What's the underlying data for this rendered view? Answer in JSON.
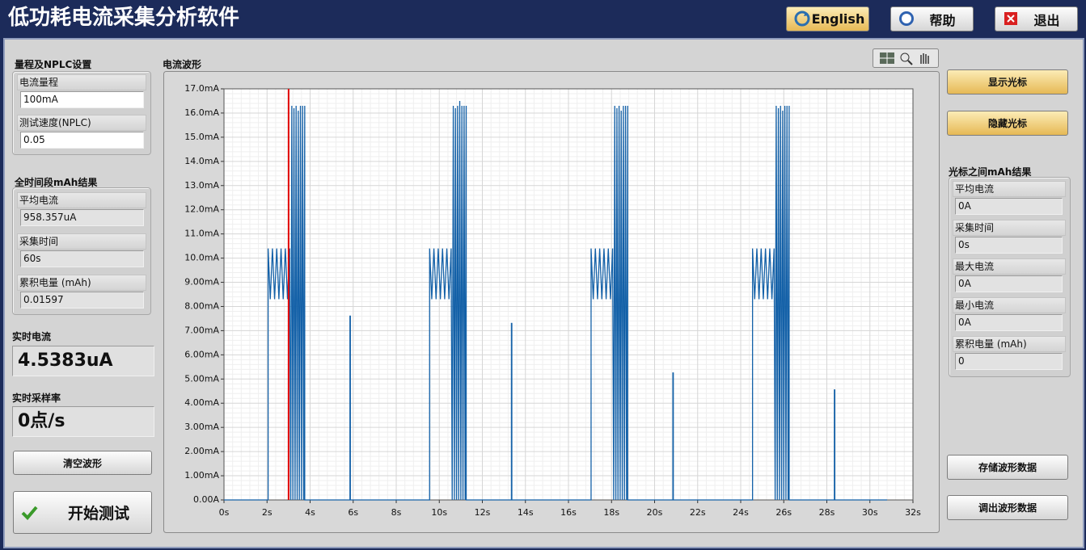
{
  "header": {
    "title": "低功耗电流采集分析软件",
    "buttons": [
      "English",
      "帮助",
      "退出"
    ]
  },
  "range_settings": {
    "title": "量程及NPLC设置",
    "fields": [
      {
        "label": "电流量程",
        "value": "100mA"
      },
      {
        "label": "测试速度(NPLC)",
        "value": "0.05"
      }
    ]
  },
  "total_results": {
    "title": "全时间段mAh结果",
    "fields": [
      {
        "label": "平均电流",
        "value": "958.357uA"
      },
      {
        "label": "采集时间",
        "value": "60s"
      },
      {
        "label": "累积电量 (mAh)",
        "value": "0.01597"
      }
    ]
  },
  "realtime_current": {
    "label": "实时电流",
    "value": "4.5383uA"
  },
  "realtime_rate": {
    "label": "实时采样率",
    "value": "0点/s"
  },
  "left_buttons": [
    "清空波形",
    "开始测试"
  ],
  "chart_data": {
    "type": "line",
    "title": "电流波形",
    "x": [
      0,
      2.05,
      2.05,
      2.15,
      2.25,
      2.35,
      2.45,
      2.55,
      2.65,
      2.75,
      2.85,
      2.95,
      3.05,
      3.1,
      3.15,
      3.2,
      3.25,
      3.3,
      3.35,
      3.4,
      3.45,
      3.5,
      3.55,
      3.6,
      3.65,
      3.7,
      3.75,
      3.75,
      5.85,
      5.85,
      5.87,
      5.87,
      9.55,
      9.55,
      9.65,
      9.75,
      9.85,
      9.95,
      10.05,
      10.15,
      10.25,
      10.35,
      10.45,
      10.55,
      10.6,
      10.65,
      10.7,
      10.75,
      10.8,
      10.85,
      10.9,
      10.95,
      11.0,
      11.05,
      11.1,
      11.15,
      11.2,
      11.25,
      11.25,
      13.35,
      13.35,
      13.37,
      13.37,
      17.05,
      17.05,
      17.15,
      17.25,
      17.35,
      17.45,
      17.55,
      17.65,
      17.75,
      17.85,
      17.95,
      18.05,
      18.1,
      18.15,
      18.2,
      18.25,
      18.3,
      18.35,
      18.4,
      18.45,
      18.5,
      18.55,
      18.6,
      18.65,
      18.7,
      18.75,
      18.75,
      20.85,
      20.85,
      20.87,
      20.87,
      24.55,
      24.55,
      24.65,
      24.75,
      24.85,
      24.95,
      25.05,
      25.15,
      25.25,
      25.35,
      25.45,
      25.55,
      25.6,
      25.65,
      25.7,
      25.75,
      25.8,
      25.85,
      25.9,
      25.95,
      26.0,
      26.05,
      26.1,
      26.15,
      26.2,
      26.25,
      26.25,
      28.35,
      28.35,
      28.37,
      28.37,
      30.8
    ],
    "series": [
      {
        "color": "#1461a8",
        "values": [
          0,
          0,
          10.4,
          8.3,
          10.4,
          8.3,
          10.4,
          8.3,
          10.4,
          8.3,
          10.4,
          8.3,
          10.4,
          0,
          16.3,
          0,
          16.2,
          0,
          16.3,
          0,
          16.1,
          0,
          16.3,
          0,
          16.3,
          0,
          16.3,
          0,
          0,
          7.6,
          7.6,
          0,
          0,
          10.4,
          8.3,
          10.4,
          8.3,
          10.4,
          8.3,
          10.4,
          8.3,
          10.4,
          8.3,
          10.4,
          0,
          16.3,
          0,
          16.2,
          0,
          16.3,
          0,
          16.5,
          0,
          16.3,
          0,
          16.3,
          0,
          16.3,
          0,
          0,
          7.3,
          7.3,
          0,
          0,
          10.4,
          8.3,
          10.4,
          8.3,
          10.4,
          8.3,
          10.4,
          8.3,
          10.4,
          8.3,
          10.4,
          0,
          16.3,
          0,
          16.2,
          0,
          16.3,
          0,
          16.1,
          0,
          16.3,
          0,
          16.3,
          0,
          16.3,
          0,
          0,
          5.25,
          5.25,
          0,
          0,
          10.4,
          8.3,
          10.4,
          8.3,
          10.4,
          8.3,
          10.4,
          8.3,
          10.4,
          8.3,
          10.4,
          0,
          16.3,
          0,
          16.2,
          0,
          16.3,
          0,
          16.1,
          0,
          16.3,
          0,
          16.3,
          0,
          16.3,
          0,
          0,
          4.55,
          4.55,
          0,
          0
        ]
      }
    ],
    "xlim": [
      0,
      32
    ],
    "ylim": [
      0,
      17
    ],
    "xticks": [
      {
        "value": 0,
        "label": "0s"
      },
      {
        "value": 2,
        "label": "2s"
      },
      {
        "value": 4,
        "label": "4s"
      },
      {
        "value": 6,
        "label": "6s"
      },
      {
        "value": 8,
        "label": "8s"
      },
      {
        "value": 10,
        "label": "10s"
      },
      {
        "value": 12,
        "label": "12s"
      },
      {
        "value": 14,
        "label": "14s"
      },
      {
        "value": 16,
        "label": "16s"
      },
      {
        "value": 18,
        "label": "18s"
      },
      {
        "value": 20,
        "label": "20s"
      },
      {
        "value": 22,
        "label": "22s"
      },
      {
        "value": 24,
        "label": "24s"
      },
      {
        "value": 26,
        "label": "26s"
      },
      {
        "value": 28,
        "label": "28s"
      },
      {
        "value": 30,
        "label": "30s"
      },
      {
        "value": 32,
        "label": "32s"
      }
    ],
    "yticks": [
      {
        "value": 0,
        "label": "0.00A"
      },
      {
        "value": 1,
        "label": "1.00mA"
      },
      {
        "value": 2,
        "label": "2.00mA"
      },
      {
        "value": 3,
        "label": "3.00mA"
      },
      {
        "value": 4,
        "label": "4.00mA"
      },
      {
        "value": 5,
        "label": "5.00mA"
      },
      {
        "value": 6,
        "label": "6.00mA"
      },
      {
        "value": 7,
        "label": "7.00mA"
      },
      {
        "value": 8,
        "label": "8.00mA"
      },
      {
        "value": 9,
        "label": "9.00mA"
      },
      {
        "value": 10,
        "label": "10.0mA"
      },
      {
        "value": 11,
        "label": "11.0mA"
      },
      {
        "value": 12,
        "label": "12.0mA"
      },
      {
        "value": 13,
        "label": "13.0mA"
      },
      {
        "value": 14,
        "label": "14.0mA"
      },
      {
        "value": 15,
        "label": "15.0mA"
      },
      {
        "value": 16,
        "label": "16.0mA"
      },
      {
        "value": 17,
        "label": "17.0mA"
      }
    ],
    "grid": true,
    "cursor": 3,
    "cursor_color": "#e00000"
  },
  "cursor_buttons": [
    "显示光标",
    "隐藏光标"
  ],
  "cursor_results": {
    "title": "光标之间mAh结果",
    "fields": [
      {
        "label": "平均电流",
        "value": "0A"
      },
      {
        "label": "采集时间",
        "value": "0s"
      },
      {
        "label": "最大电流",
        "value": "0A"
      },
      {
        "label": "最小电流",
        "value": "0A"
      },
      {
        "label": "累积电量 (mAh)",
        "value": "0"
      }
    ]
  },
  "data_buttons": [
    "存储波形数据",
    "调出波形数据"
  ]
}
